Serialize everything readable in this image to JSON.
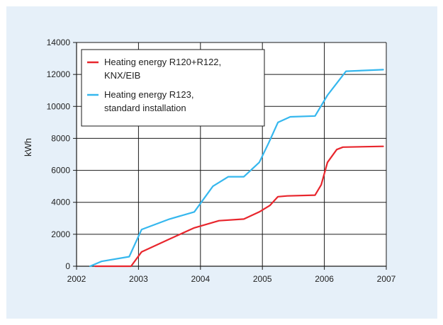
{
  "chart_data": {
    "type": "line",
    "ylabel": "kWh",
    "xlim": [
      2002,
      2007
    ],
    "ylim": [
      0,
      14000
    ],
    "x_ticks": [
      "2002",
      "2003",
      "2004",
      "2005",
      "2006",
      "2007"
    ],
    "y_ticks": [
      "0",
      "2000",
      "4000",
      "6000",
      "8000",
      "10000",
      "12000",
      "14000"
    ],
    "grid": "vertical and horizontal",
    "legend_position": "top-left",
    "series": [
      {
        "name_lines": [
          "Heating energy R120+R122,",
          "KNX/EIB"
        ],
        "color": "#e8262d",
        "points": [
          [
            2002.3,
            0
          ],
          [
            2002.88,
            0
          ],
          [
            2003.05,
            900
          ],
          [
            2003.5,
            1700
          ],
          [
            2003.9,
            2400
          ],
          [
            2004.3,
            2850
          ],
          [
            2004.7,
            2950
          ],
          [
            2004.95,
            3400
          ],
          [
            2005.12,
            3800
          ],
          [
            2005.25,
            4350
          ],
          [
            2005.4,
            4400
          ],
          [
            2005.85,
            4450
          ],
          [
            2005.95,
            5100
          ],
          [
            2006.05,
            6500
          ],
          [
            2006.2,
            7300
          ],
          [
            2006.3,
            7450
          ],
          [
            2006.95,
            7500
          ]
        ]
      },
      {
        "name_lines": [
          "Heating energy R123,",
          "standard installation"
        ],
        "color": "#35b7ee",
        "points": [
          [
            2002.22,
            0
          ],
          [
            2002.4,
            300
          ],
          [
            2002.85,
            600
          ],
          [
            2003.05,
            2300
          ],
          [
            2003.5,
            2950
          ],
          [
            2003.9,
            3400
          ],
          [
            2004.05,
            4200
          ],
          [
            2004.2,
            5000
          ],
          [
            2004.45,
            5600
          ],
          [
            2004.7,
            5600
          ],
          [
            2004.95,
            6500
          ],
          [
            2005.1,
            7700
          ],
          [
            2005.25,
            9000
          ],
          [
            2005.45,
            9350
          ],
          [
            2005.85,
            9400
          ],
          [
            2006.05,
            10700
          ],
          [
            2006.35,
            12200
          ],
          [
            2006.95,
            12300
          ]
        ]
      }
    ]
  }
}
